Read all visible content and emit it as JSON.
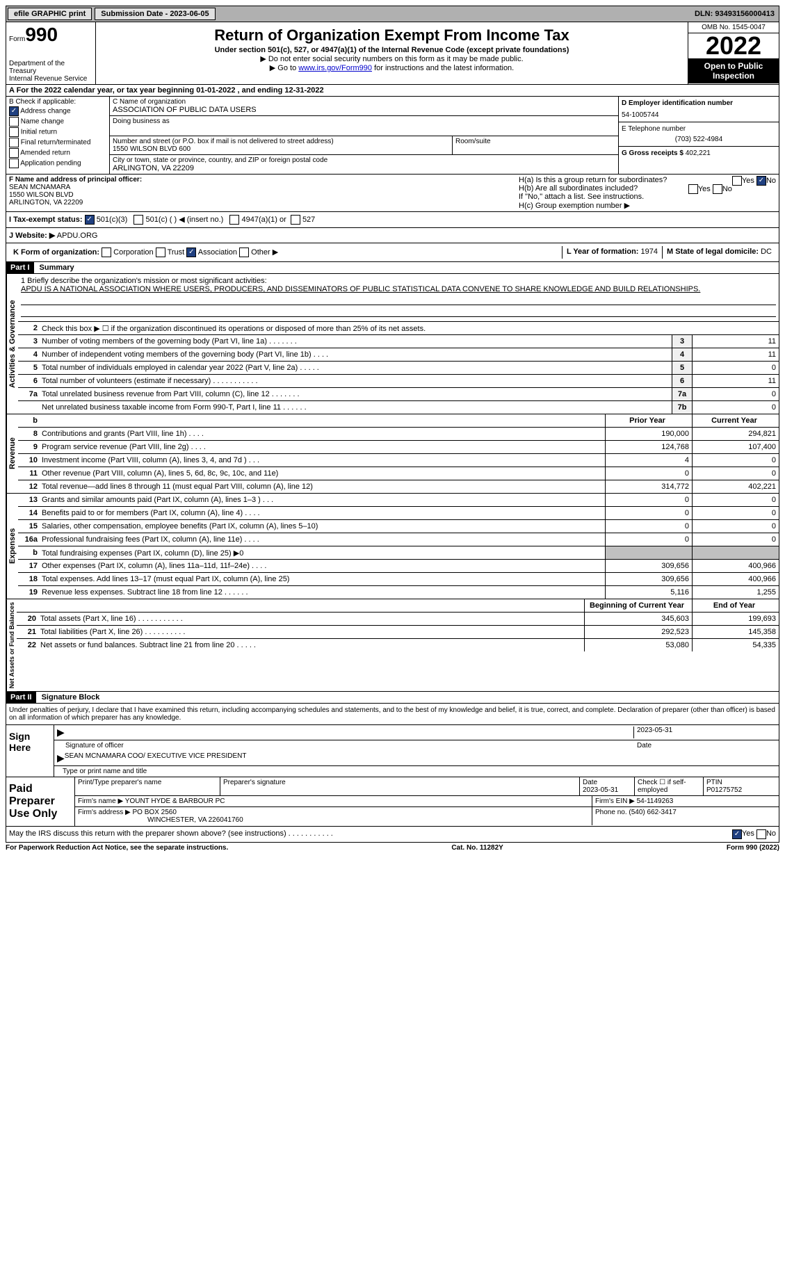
{
  "topbar": {
    "efile": "efile GRAPHIC print",
    "submission": "Submission Date - 2023-06-05",
    "dln": "DLN: 93493156000413"
  },
  "header": {
    "form_label": "Form",
    "form_num": "990",
    "dept": "Department of the Treasury",
    "irs": "Internal Revenue Service",
    "title": "Return of Organization Exempt From Income Tax",
    "subtitle": "Under section 501(c), 527, or 4947(a)(1) of the Internal Revenue Code (except private foundations)",
    "note1": "▶ Do not enter social security numbers on this form as it may be made public.",
    "note2_pre": "▶ Go to ",
    "note2_link": "www.irs.gov/Form990",
    "note2_post": " for instructions and the latest information.",
    "omb": "OMB No. 1545-0047",
    "year": "2022",
    "open": "Open to Public Inspection"
  },
  "row_a": "A For the 2022 calendar year, or tax year beginning 01-01-2022   , and ending 12-31-2022",
  "section_b": {
    "label": "B Check if applicable:",
    "items": [
      "Address change",
      "Name change",
      "Initial return",
      "Final return/terminated",
      "Amended return",
      "Application pending"
    ],
    "checked": [
      true,
      false,
      false,
      false,
      false,
      false
    ]
  },
  "section_c": {
    "name_label": "C Name of organization",
    "name": "ASSOCIATION OF PUBLIC DATA USERS",
    "dba_label": "Doing business as",
    "street_label": "Number and street (or P.O. box if mail is not delivered to street address)",
    "street": "1550 WILSON BLVD 600",
    "room_label": "Room/suite",
    "city_label": "City or town, state or province, country, and ZIP or foreign postal code",
    "city": "ARLINGTON, VA  22209"
  },
  "section_d": {
    "ein_label": "D Employer identification number",
    "ein": "54-1005744",
    "phone_label": "E Telephone number",
    "phone": "(703) 522-4984",
    "gross_label": "G Gross receipts $",
    "gross": "402,221"
  },
  "section_f": {
    "label": "F  Name and address of principal officer:",
    "name": "SEAN MCNAMARA",
    "street": "1550 WILSON BLVD",
    "city": "ARLINGTON, VA  22209"
  },
  "section_h": {
    "ha": "H(a)  Is this a group return for subordinates?",
    "hb": "H(b)  Are all subordinates included?",
    "hb_note": "If \"No,\" attach a list. See instructions.",
    "hc": "H(c)  Group exemption number ▶"
  },
  "section_i": {
    "label": "I    Tax-exempt status:",
    "opts": [
      "501(c)(3)",
      "501(c) (  ) ◀ (insert no.)",
      "4947(a)(1) or",
      "527"
    ]
  },
  "section_j": {
    "label": "J    Website: ▶",
    "val": "APDU.ORG"
  },
  "section_k": {
    "label": "K Form of organization:",
    "opts": [
      "Corporation",
      "Trust",
      "Association",
      "Other ▶"
    ],
    "l_label": "L Year of formation:",
    "l_val": "1974",
    "m_label": "M State of legal domicile:",
    "m_val": "DC"
  },
  "part1": {
    "header": "Part I",
    "title": "Summary",
    "mission_label": "1   Briefly describe the organization's mission or most significant activities:",
    "mission": "APDU IS A NATIONAL ASSOCIATION WHERE USERS, PRODUCERS, AND DISSEMINATORS OF PUBLIC STATISTICAL DATA CONVENE TO SHARE KNOWLEDGE AND BUILD RELATIONSHIPS.",
    "line2": "Check this box ▶ ☐  if the organization discontinued its operations or disposed of more than 25% of its net assets.",
    "vtabs": [
      "Activities & Governance",
      "Revenue",
      "Expenses",
      "Net Assets or Fund Balances"
    ],
    "lines_gov": [
      {
        "n": "3",
        "d": "Number of voting members of the governing body (Part VI, line 1a)   .     .     .     .     .     .     .",
        "b": "3",
        "v": "11"
      },
      {
        "n": "4",
        "d": "Number of independent voting members of the governing body (Part VI, line 1b)   .     .     .     .",
        "b": "4",
        "v": "11"
      },
      {
        "n": "5",
        "d": "Total number of individuals employed in calendar year 2022 (Part V, line 2a)   .     .     .     .     .",
        "b": "5",
        "v": "0"
      },
      {
        "n": "6",
        "d": "Total number of volunteers (estimate if necessary)    .     .     .     .     .     .     .     .     .     .     .",
        "b": "6",
        "v": "11"
      },
      {
        "n": "7a",
        "d": "Total unrelated business revenue from Part VIII, column (C), line 12    .     .     .     .     .     .     .",
        "b": "7a",
        "v": "0"
      },
      {
        "n": "",
        "d": "Net unrelated business taxable income from Form 990-T, Part I, line 11   .     .     .     .     .     .",
        "b": "7b",
        "v": "0"
      }
    ],
    "col_head_prior": "Prior Year",
    "col_head_current": "Current Year",
    "lines_rev": [
      {
        "n": "8",
        "d": "Contributions and grants (Part VIII, line 1h)    .     .     .     .",
        "p": "190,000",
        "c": "294,821"
      },
      {
        "n": "9",
        "d": "Program service revenue (Part VIII, line 2g)   .     .     .     .",
        "p": "124,768",
        "c": "107,400"
      },
      {
        "n": "10",
        "d": "Investment income (Part VIII, column (A), lines 3, 4, and 7d )    .     .     .",
        "p": "4",
        "c": "0"
      },
      {
        "n": "11",
        "d": "Other revenue (Part VIII, column (A), lines 5, 6d, 8c, 9c, 10c, and 11e)",
        "p": "0",
        "c": "0"
      },
      {
        "n": "12",
        "d": "Total revenue—add lines 8 through 11 (must equal Part VIII, column (A), line 12)",
        "p": "314,772",
        "c": "402,221"
      }
    ],
    "lines_exp": [
      {
        "n": "13",
        "d": "Grants and similar amounts paid (Part IX, column (A), lines 1–3 )   .     .     .",
        "p": "0",
        "c": "0"
      },
      {
        "n": "14",
        "d": "Benefits paid to or for members (Part IX, column (A), line 4)   .     .     .     .",
        "p": "0",
        "c": "0"
      },
      {
        "n": "15",
        "d": "Salaries, other compensation, employee benefits (Part IX, column (A), lines 5–10)",
        "p": "0",
        "c": "0"
      },
      {
        "n": "16a",
        "d": "Professional fundraising fees (Part IX, column (A), line 11e)    .     .     .     .",
        "p": "0",
        "c": "0"
      },
      {
        "n": "b",
        "d": "Total fundraising expenses (Part IX, column (D), line 25) ▶0",
        "p": "",
        "c": "",
        "shaded": true
      },
      {
        "n": "17",
        "d": "Other expenses (Part IX, column (A), lines 11a–11d, 11f–24e)   .     .     .     .",
        "p": "309,656",
        "c": "400,966"
      },
      {
        "n": "18",
        "d": "Total expenses. Add lines 13–17 (must equal Part IX, column (A), line 25)",
        "p": "309,656",
        "c": "400,966"
      },
      {
        "n": "19",
        "d": "Revenue less expenses. Subtract line 18 from line 12   .     .     .     .     .     .",
        "p": "5,116",
        "c": "1,255"
      }
    ],
    "col_head_begin": "Beginning of Current Year",
    "col_head_end": "End of Year",
    "lines_net": [
      {
        "n": "20",
        "d": "Total assets (Part X, line 16)   .     .     .     .     .     .     .     .     .     .     .",
        "p": "345,603",
        "c": "199,693"
      },
      {
        "n": "21",
        "d": "Total liabilities (Part X, line 26)    .     .     .     .     .     .     .     .     .     .",
        "p": "292,523",
        "c": "145,358"
      },
      {
        "n": "22",
        "d": "Net assets or fund balances. Subtract line 21 from line 20    .     .     .     .     .",
        "p": "53,080",
        "c": "54,335"
      }
    ]
  },
  "part2": {
    "header": "Part II",
    "title": "Signature Block",
    "declaration": "Under penalties of perjury, I declare that I have examined this return, including accompanying schedules and statements, and to the best of my knowledge and belief, it is true, correct, and complete. Declaration of preparer (other than officer) is based on all information of which preparer has any knowledge.",
    "sign_here": "Sign Here",
    "sig_officer": "Signature of officer",
    "sig_date": "2023-05-31",
    "date_label": "Date",
    "officer_name": "SEAN MCNAMARA COO/ EXECUTIVE VICE PRESIDENT",
    "type_label": "Type or print name and title"
  },
  "paid": {
    "label": "Paid Preparer Use Only",
    "h1": "Print/Type preparer's name",
    "h2": "Preparer's signature",
    "h3_label": "Date",
    "h3": "2023-05-31",
    "h4": "Check ☐ if self-employed",
    "h5_label": "PTIN",
    "h5": "P01275752",
    "firm_name_label": "Firm's name      ▶",
    "firm_name": "YOUNT HYDE & BARBOUR PC",
    "firm_ein_label": "Firm's EIN ▶",
    "firm_ein": "54-1149263",
    "firm_addr_label": "Firm's address ▶",
    "firm_addr1": "PO BOX 2560",
    "firm_addr2": "WINCHESTER, VA  226041760",
    "phone_label": "Phone no.",
    "phone": "(540) 662-3417"
  },
  "footer": {
    "discuss": "May the IRS discuss this return with the preparer shown above? (see instructions)    .     .     .     .     .     .     .     .     .     .     .",
    "yes": "Yes",
    "no": "No",
    "paperwork": "For Paperwork Reduction Act Notice, see the separate instructions.",
    "cat": "Cat. No. 11282Y",
    "formref": "Form 990 (2022)"
  }
}
